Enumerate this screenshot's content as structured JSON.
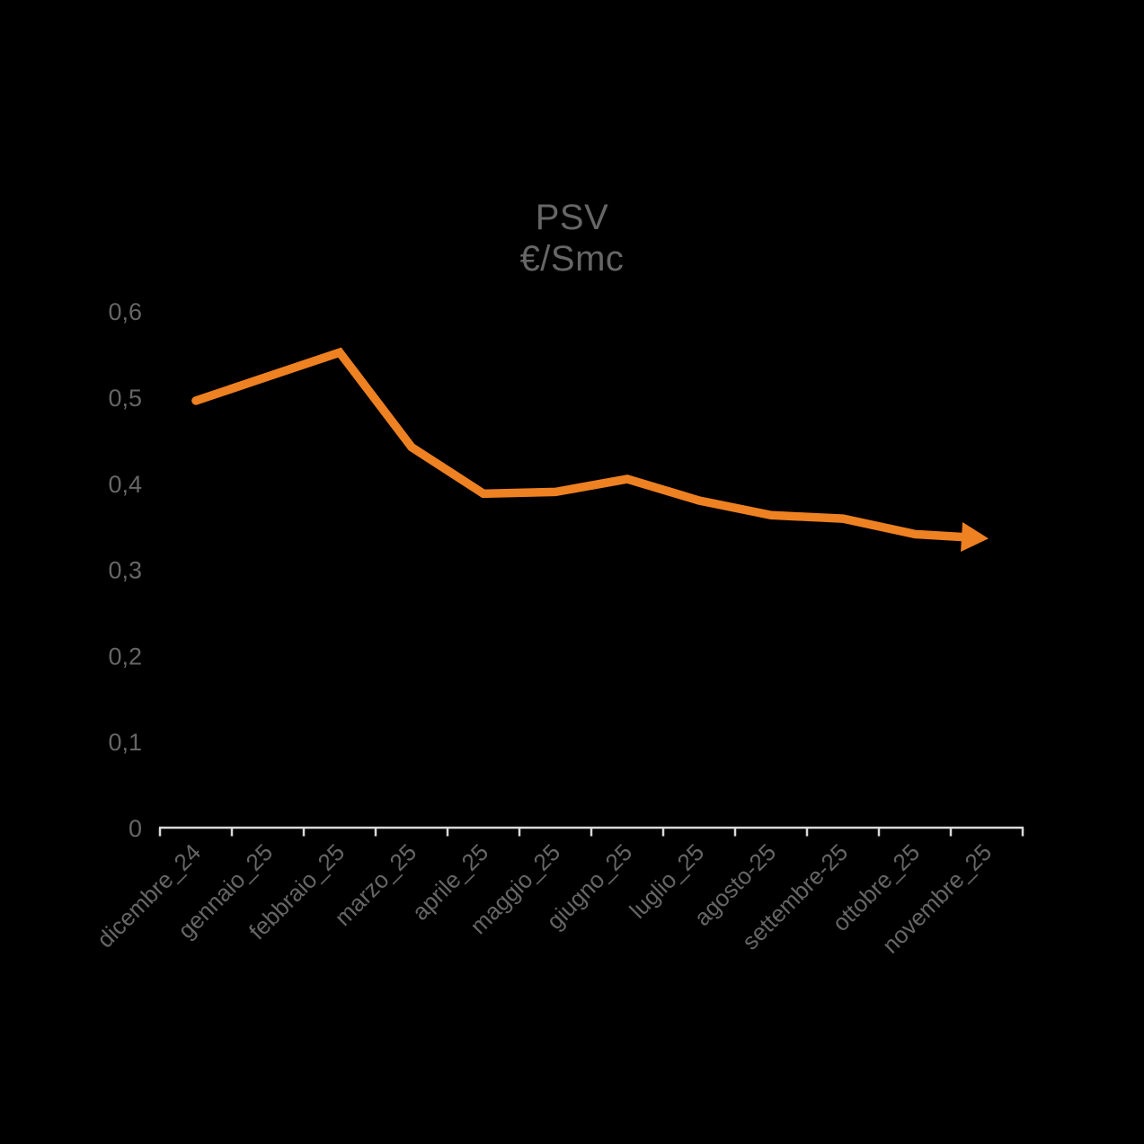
{
  "title": {
    "line1": "PSV",
    "line2": "€/Smc"
  },
  "chart_data": {
    "type": "line",
    "title": "PSV",
    "subtitle": "€/Smc",
    "ylabel": "€/Smc",
    "xlabel": "",
    "grid": false,
    "legend": "none",
    "ylim": [
      0,
      0.6
    ],
    "ytick_step": 0.1,
    "ytick_labels": [
      "0",
      "0,1",
      "0,2",
      "0,3",
      "0,4",
      "0,5",
      "0,6"
    ],
    "decimal_separator": ",",
    "categories": [
      "dicembre_24",
      "gennaio_25",
      "febbraio_25",
      "marzo_25",
      "aprile_25",
      "maggio_25",
      "giugno_25",
      "luglio_25",
      "agosto-25",
      "settembre-25",
      "ottobre_25",
      "novembre_25"
    ],
    "series": [
      {
        "name": "PSV",
        "values": [
          0.497,
          0.525,
          0.553,
          0.443,
          0.389,
          0.391,
          0.406,
          0.381,
          0.364,
          0.36,
          0.342,
          0.337
        ]
      }
    ],
    "arrow_end": true,
    "line_color": "#EE8122",
    "axis_color": "#D9D9D9",
    "text_color": "#666666",
    "background": "#000000"
  }
}
